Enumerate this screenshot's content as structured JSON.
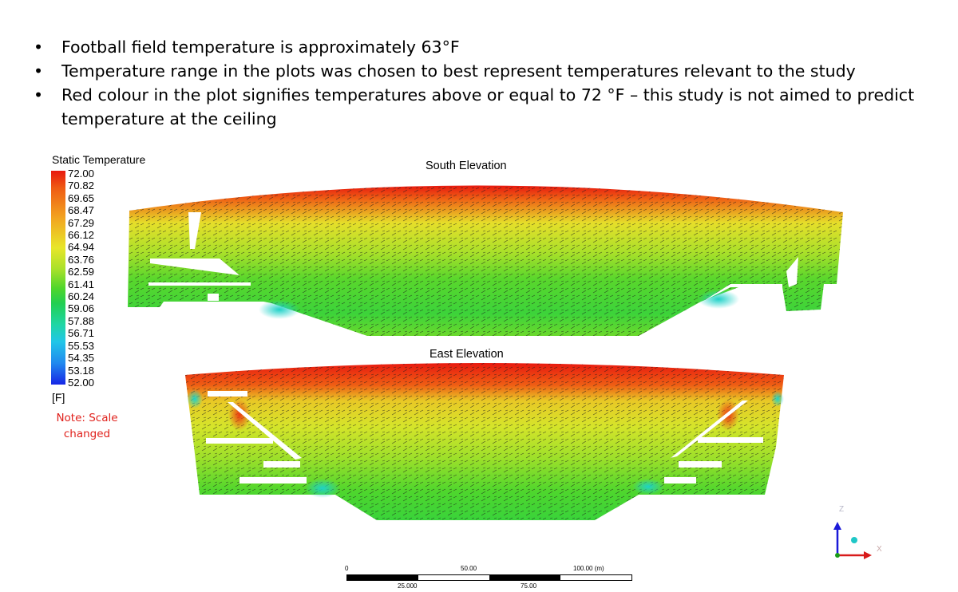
{
  "bullets": [
    "Football field temperature is approximately 63°F",
    "Temperature range in the plots was chosen to best represent temperatures relevant to the study",
    "Red colour in the plot signifies temperatures above or equal to 72 °F – this study is not aimed to predict temperature at the ceiling"
  ],
  "legend": {
    "title": "Static Temperature",
    "ticks": [
      "72.00",
      "70.82",
      "69.65",
      "68.47",
      "67.29",
      "66.12",
      "64.94",
      "63.76",
      "62.59",
      "61.41",
      "60.24",
      "59.06",
      "57.88",
      "56.71",
      "55.53",
      "54.35",
      "53.18",
      "52.00"
    ],
    "unit": "[F]",
    "note_lines": [
      "Note: Scale",
      "changed"
    ]
  },
  "plots": {
    "south_title": "South Elevation",
    "east_title": "East Elevation"
  },
  "scale_bar": {
    "top_labels": [
      "0",
      "50.00",
      "100.00  (m)"
    ],
    "bottom_labels": [
      "25.000",
      "75.00"
    ]
  },
  "axes": {
    "z": "Z",
    "x": "X"
  },
  "colors": {
    "hot": "#e8190f",
    "warm": "#e8e62a",
    "mid": "#4fd62b",
    "cool": "#21c6e8",
    "cold": "#1626e6",
    "note": "#e0201b"
  }
}
